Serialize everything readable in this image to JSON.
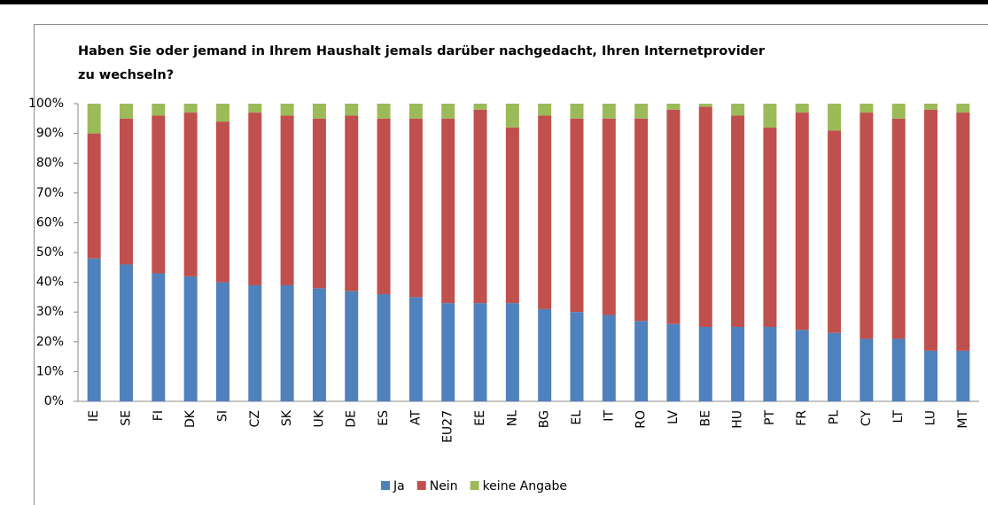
{
  "chart_data": {
    "type": "stacked_bar",
    "title": [
      "Haben Sie oder jemand in Ihrem Haushalt jemals darüber nachgedacht, Ihren Internetprovider",
      "zu wechseln?"
    ],
    "categories": [
      "IE",
      "SE",
      "FI",
      "DK",
      "SI",
      "CZ",
      "SK",
      "UK",
      "DE",
      "ES",
      "AT",
      "EU27",
      "EE",
      "NL",
      "BG",
      "EL",
      "IT",
      "RO",
      "LV",
      "BE",
      "HU",
      "PT",
      "FR",
      "PL",
      "CY",
      "LT",
      "LU",
      "MT"
    ],
    "series": [
      {
        "name": "Ja",
        "color": "#4f81bd",
        "values": [
          48,
          46,
          43,
          42,
          40,
          39,
          39,
          38,
          37,
          36,
          35,
          33,
          33,
          33,
          31,
          30,
          29,
          27,
          26,
          25,
          25,
          25,
          24,
          23,
          21,
          21,
          17,
          17
        ]
      },
      {
        "name": "Nein",
        "color": "#c0504d",
        "values": [
          42,
          49,
          53,
          55,
          54,
          58,
          57,
          57,
          59,
          59,
          60,
          62,
          65,
          59,
          65,
          65,
          66,
          68,
          72,
          74,
          71,
          67,
          73,
          68,
          76,
          74,
          81,
          80
        ]
      },
      {
        "name": "keine Angabe",
        "color": "#9bbb59",
        "values": [
          10,
          5,
          4,
          3,
          6,
          3,
          4,
          5,
          4,
          5,
          5,
          5,
          2,
          8,
          4,
          5,
          5,
          5,
          2,
          1,
          4,
          8,
          3,
          9,
          3,
          5,
          2,
          3
        ]
      }
    ],
    "ylim": [
      0,
      100
    ],
    "yticks": [
      {
        "value": 0,
        "label": "0%"
      },
      {
        "value": 10,
        "label": "10%"
      },
      {
        "value": 20,
        "label": "20%"
      },
      {
        "value": 30,
        "label": "30%"
      },
      {
        "value": 40,
        "label": "40%"
      },
      {
        "value": 50,
        "label": "50%"
      },
      {
        "value": 60,
        "label": "60%"
      },
      {
        "value": 70,
        "label": "70%"
      },
      {
        "value": 80,
        "label": "80%"
      },
      {
        "value": 90,
        "label": "90%"
      },
      {
        "value": 100,
        "label": "100%"
      }
    ],
    "legend": "bottom"
  }
}
